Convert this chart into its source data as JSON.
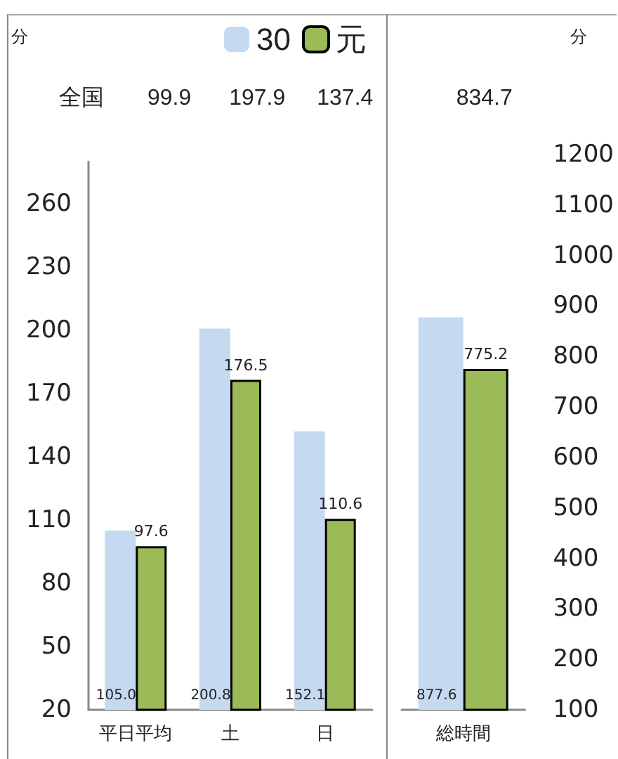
{
  "chart_data": [
    {
      "type": "bar",
      "ylabel": "分",
      "categories": [
        "平日平均",
        "土",
        "日"
      ],
      "series": [
        {
          "name": "30",
          "color": "#c5d9f1",
          "values": [
            105.0,
            200.8,
            152.1
          ],
          "value_labels": [
            "105.0",
            "200.8",
            "152.1"
          ]
        },
        {
          "name": "元",
          "color": "#9bbb59",
          "values": [
            97.6,
            176.5,
            110.6
          ],
          "value_labels": [
            "97.6",
            "176.5",
            "110.6"
          ]
        }
      ],
      "ylim": [
        20,
        280
      ],
      "yticks": [
        20,
        50,
        80,
        110,
        140,
        170,
        200,
        230,
        260
      ],
      "grid": false,
      "legend": "top right",
      "annotations": [
        "全国",
        "99.9",
        "197.9",
        "137.4"
      ]
    },
    {
      "type": "bar",
      "ylabel": "分",
      "categories": [
        "総時間"
      ],
      "series": [
        {
          "color": "#c5d9f1",
          "values": [
            877.6
          ],
          "value_labels": [
            "877.6"
          ]
        },
        {
          "color": "#9bbb59",
          "values": [
            775.2
          ],
          "value_labels": [
            "775.2"
          ]
        }
      ],
      "ylim": [
        100,
        1200
      ],
      "yticks": [
        100,
        200,
        300,
        400,
        500,
        600,
        700,
        800,
        900,
        1000,
        1100,
        1200
      ],
      "grid": false,
      "legend": false,
      "annotations": [
        "834.7"
      ]
    }
  ]
}
